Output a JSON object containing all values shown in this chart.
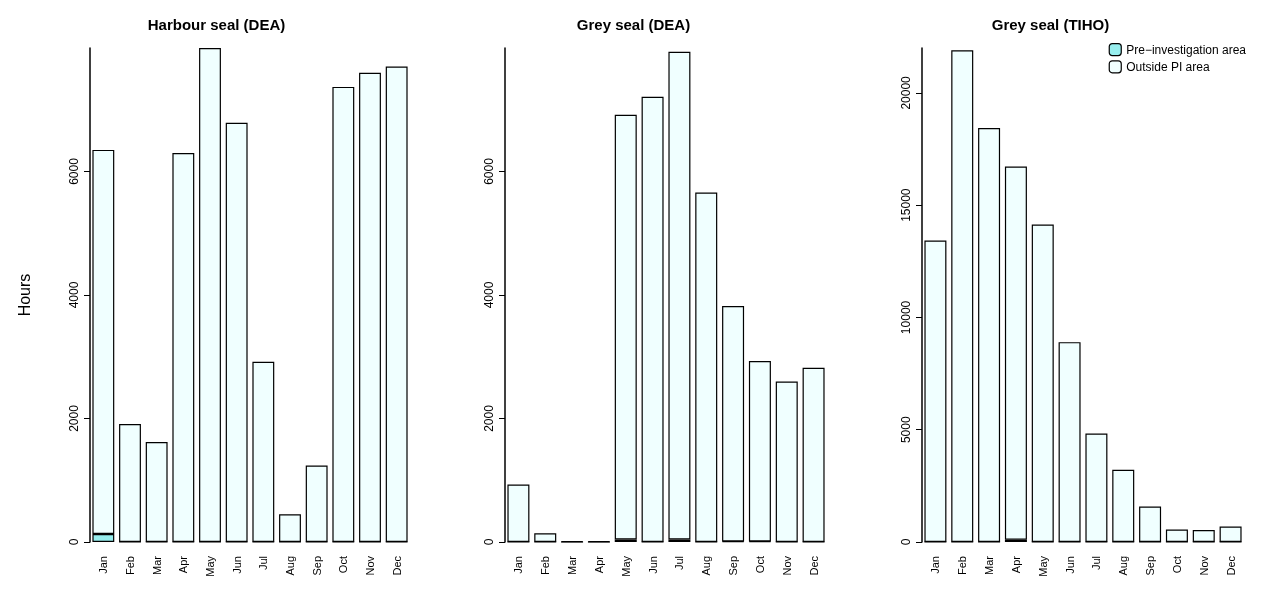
{
  "chart_data": [
    {
      "type": "bar",
      "title": "Harbour seal (DEA)",
      "ylabel": "Hours",
      "stacked": true,
      "legend": false,
      "grid": false,
      "categories": [
        "Jan",
        "Feb",
        "Mar",
        "Apr",
        "May",
        "Jun",
        "Jul",
        "Aug",
        "Sep",
        "Oct",
        "Nov",
        "Dec"
      ],
      "ylim": [
        0,
        8000
      ],
      "yticks": [
        0,
        2000,
        4000,
        6000
      ],
      "series": [
        {
          "color": "#97eeee",
          "values": [
            130,
            0,
            0,
            0,
            0,
            0,
            0,
            0,
            0,
            0,
            0,
            0
          ]
        },
        {
          "color": "#f0ffff",
          "values": [
            6220,
            1910,
            1620,
            6300,
            8000,
            6790,
            2920,
            450,
            1240,
            7370,
            7600,
            7700
          ]
        }
      ]
    },
    {
      "type": "bar",
      "title": "Grey seal (DEA)",
      "stacked": true,
      "legend": false,
      "grid": false,
      "categories": [
        "Jan",
        "Feb",
        "Mar",
        "Apr",
        "May",
        "Jun",
        "Jul",
        "Aug",
        "Sep",
        "Oct",
        "Nov",
        "Dec"
      ],
      "ylim": [
        0,
        8000
      ],
      "yticks": [
        0,
        2000,
        4000,
        6000
      ],
      "series": [
        {
          "color": "#97eeee",
          "values": [
            0,
            0,
            0,
            0,
            40,
            0,
            40,
            0,
            10,
            10,
            0,
            0
          ]
        },
        {
          "color": "#f0ffff",
          "values": [
            930,
            140,
            10,
            10,
            6880,
            7210,
            7900,
            5660,
            3810,
            2920,
            2600,
            2820
          ]
        }
      ]
    },
    {
      "type": "bar",
      "title": "Grey seal (TIHO)",
      "stacked": true,
      "legend": "top right",
      "grid": false,
      "categories": [
        "Jan",
        "Feb",
        "Mar",
        "Apr",
        "May",
        "Jun",
        "Jul",
        "Aug",
        "Sep",
        "Oct",
        "Nov",
        "Dec"
      ],
      "ylim": [
        0,
        22000
      ],
      "yticks": [
        0,
        5000,
        10000,
        15000,
        20000
      ],
      "series": [
        {
          "name": "Pre−investigation area",
          "color": "#97eeee",
          "values": [
            0,
            0,
            0,
            100,
            0,
            0,
            0,
            0,
            0,
            0,
            0,
            0
          ]
        },
        {
          "name": "Outside PI area",
          "color": "#f0ffff",
          "values": [
            13430,
            21900,
            18440,
            16620,
            14140,
            8900,
            4830,
            3220,
            1580,
            560,
            530,
            690
          ]
        }
      ]
    }
  ]
}
